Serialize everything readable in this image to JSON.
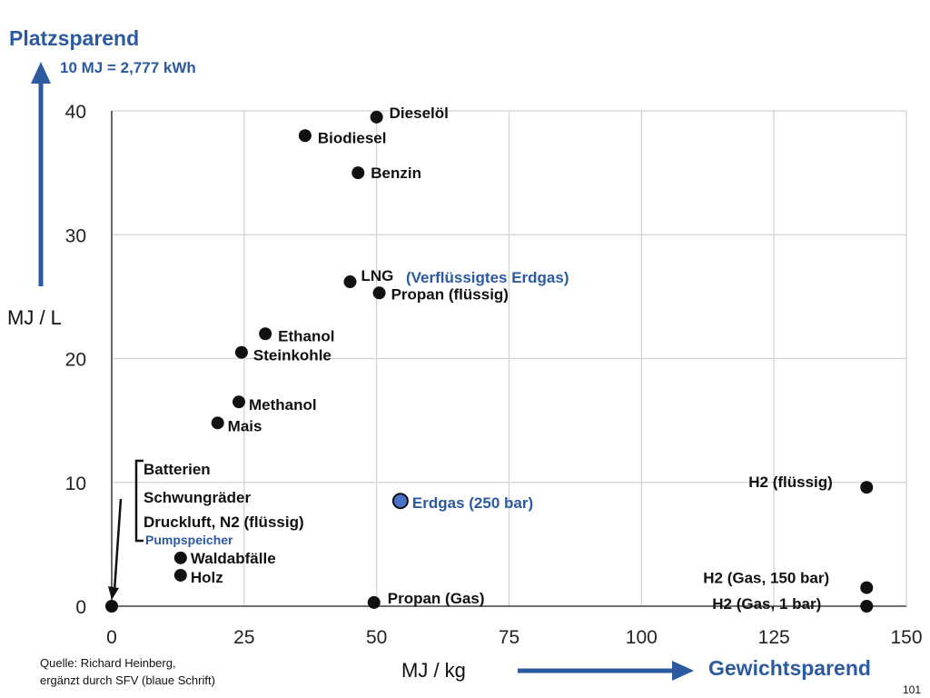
{
  "slide": {
    "title_top": "Platzsparend",
    "note": "10 MJ = 2,777 kWh",
    "ylabel": "MJ / L",
    "xlabel": "MJ / kg",
    "title_right": "Gewichtsparend",
    "source_line1": "Quelle: Richard Heinberg,",
    "source_line2": "ergänzt durch SFV  (blaue Schrift)",
    "page_number": "101",
    "accent_blue": "#2c5aa0",
    "grid_color": "#d0d0d0"
  },
  "chart_data": {
    "type": "scatter",
    "xlabel": "MJ / kg",
    "ylabel": "MJ / L",
    "xlim": [
      0,
      150
    ],
    "ylim": [
      0,
      40
    ],
    "x_ticks": [
      "0",
      "25",
      "50",
      "75",
      "100",
      "125",
      "150"
    ],
    "y_ticks": [
      "0",
      "10",
      "20",
      "30",
      "40"
    ],
    "grid": true,
    "points": [
      {
        "label": "Dieselöl",
        "x": 50,
        "y": 39.5
      },
      {
        "label": "Biodiesel",
        "x": 36.5,
        "y": 38
      },
      {
        "label": "Benzin",
        "x": 46.5,
        "y": 35
      },
      {
        "label": "LNG",
        "x": 45,
        "y": 26.2
      },
      {
        "label": "Propan (flüssig)",
        "x": 50.5,
        "y": 25.3
      },
      {
        "label": "Ethanol",
        "x": 29,
        "y": 22
      },
      {
        "label": "Steinkohle",
        "x": 24.5,
        "y": 20.5
      },
      {
        "label": "Methanol",
        "x": 24,
        "y": 16.5
      },
      {
        "label": "Mais",
        "x": 20,
        "y": 14.8
      },
      {
        "label": "Waldabfälle",
        "x": 13,
        "y": 3.9
      },
      {
        "label": "Holz",
        "x": 13,
        "y": 2.5
      },
      {
        "label": "Propan (Gas)",
        "x": 49.5,
        "y": 0.3
      },
      {
        "label": "H2 (flüssig)",
        "x": 142.5,
        "y": 9.6
      },
      {
        "label": "H2 (Gas, 150 bar)",
        "x": 142.5,
        "y": 1.5
      },
      {
        "label": "H2 (Gas, 1 bar)",
        "x": 142.5,
        "y": 0
      },
      {
        "label": "Ursprung",
        "x": 0,
        "y": 0
      }
    ],
    "highlight_point": {
      "label": "Erdgas (250 bar)",
      "x": 54.5,
      "y": 8.5,
      "color": "#4a72c4"
    },
    "annotations": {
      "lng_extra": "(Verflüssigtes Erdgas)",
      "bracket_items": [
        "Batterien",
        "Schwungräder",
        "Druckluft, N2 (flüssig)"
      ],
      "pumpspeicher": "Pumpspeicher"
    }
  }
}
